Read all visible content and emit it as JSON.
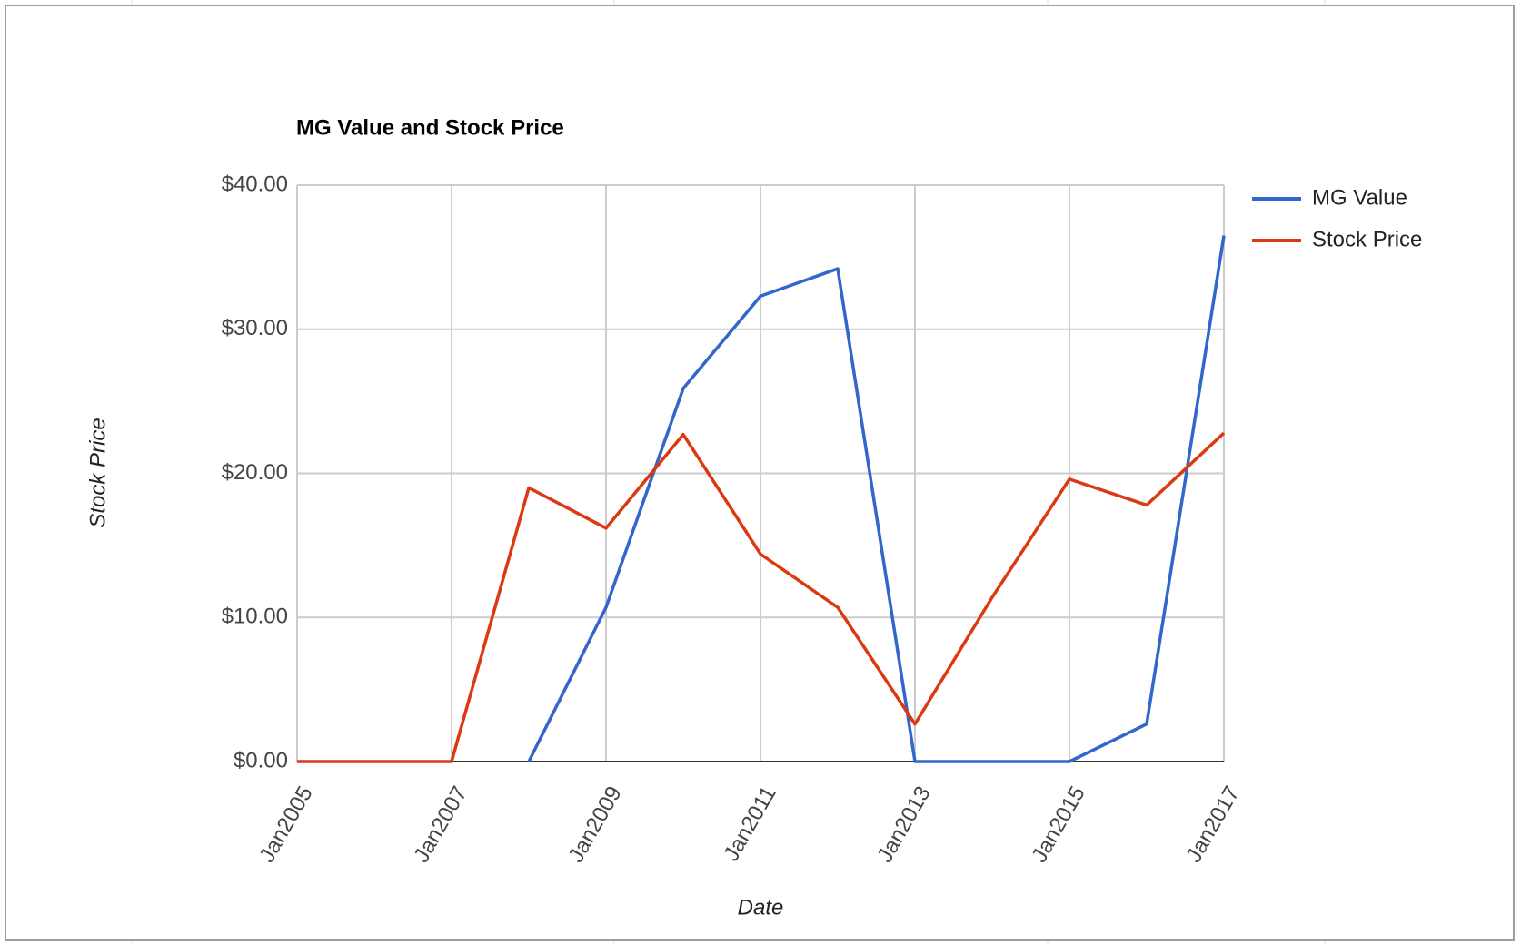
{
  "chart_data": {
    "type": "line",
    "title": "MG Value and Stock Price",
    "x_label": "Date",
    "y_label": "Stock Price",
    "categories": [
      "Jan2005",
      null,
      "Jan2007",
      null,
      "Jan2009",
      null,
      "Jan2011",
      null,
      "Jan2013",
      null,
      "Jan2015",
      null,
      "Jan2017"
    ],
    "series": [
      {
        "name": "MG Value",
        "color": "#3366cc",
        "values": [
          null,
          null,
          null,
          0,
          10.7,
          25.9,
          32.3,
          34.2,
          0,
          0,
          0,
          2.6,
          36.5
        ]
      },
      {
        "name": "Stock Price",
        "color": "#dc3912",
        "values": [
          0,
          0,
          0,
          19.0,
          16.2,
          22.7,
          14.4,
          10.7,
          2.6,
          11.4,
          19.6,
          17.8,
          22.8
        ]
      }
    ],
    "ylim": [
      0,
      40
    ],
    "yticks": [
      {
        "value": 0,
        "label": "$0.00"
      },
      {
        "value": 10,
        "label": "$10.00"
      },
      {
        "value": 20,
        "label": "$20.00"
      },
      {
        "value": 30,
        "label": "$30.00"
      },
      {
        "value": 40,
        "label": "$40.00"
      }
    ],
    "grid": true,
    "legend": "right"
  }
}
